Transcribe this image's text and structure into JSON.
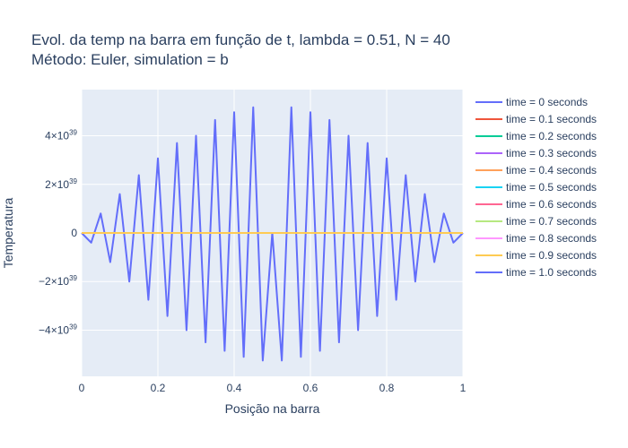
{
  "chart_data": {
    "type": "line",
    "title_lines": [
      "Evol. da temp na barra em função de t, lambda = 0.51, N = 40",
      "Método: Euler, simulation = b"
    ],
    "xlabel": "Posição na barra",
    "ylabel": "Temperatura",
    "xlim": [
      0,
      1
    ],
    "ylim": [
      -5.9e+39,
      5.9e+39
    ],
    "x_ticks": [
      {
        "value": 0,
        "label": "0"
      },
      {
        "value": 0.2,
        "label": "0.2"
      },
      {
        "value": 0.4,
        "label": "0.4"
      },
      {
        "value": 0.6,
        "label": "0.6"
      },
      {
        "value": 0.8,
        "label": "0.8"
      },
      {
        "value": 1,
        "label": "1"
      }
    ],
    "y_ticks": [
      {
        "value": -4e+39,
        "mant": "−4×10",
        "exp": "39"
      },
      {
        "value": -2e+39,
        "mant": "−2×10",
        "exp": "39"
      },
      {
        "value": 0,
        "mant": "0",
        "exp": ""
      },
      {
        "value": 2e+39,
        "mant": "2×10",
        "exp": "39"
      },
      {
        "value": 4e+39,
        "mant": "4×10",
        "exp": "39"
      }
    ],
    "grid": true,
    "legend_position": "right",
    "series": [
      {
        "name": "time = 0 seconds",
        "color": "#636efa",
        "kind": "flat"
      },
      {
        "name": "time = 0.1 seconds",
        "color": "#ef553b",
        "kind": "flat"
      },
      {
        "name": "time = 0.2 seconds",
        "color": "#00cc96",
        "kind": "flat"
      },
      {
        "name": "time = 0.3 seconds",
        "color": "#ab63fa",
        "kind": "flat"
      },
      {
        "name": "time = 0.4 seconds",
        "color": "#ffa15a",
        "kind": "flat"
      },
      {
        "name": "time = 0.5 seconds",
        "color": "#19d3f3",
        "kind": "flat"
      },
      {
        "name": "time = 0.6 seconds",
        "color": "#ff6692",
        "kind": "flat"
      },
      {
        "name": "time = 0.7 seconds",
        "color": "#b6e880",
        "kind": "flat"
      },
      {
        "name": "time = 0.8 seconds",
        "color": "#ff97ff",
        "kind": "flat"
      },
      {
        "name": "time = 0.9 seconds",
        "color": "#fecb52",
        "kind": "flat"
      },
      {
        "name": "time = 1.0 seconds",
        "color": "#636efa",
        "kind": "data",
        "x": [
          0,
          0.025,
          0.05,
          0.075,
          0.1,
          0.125,
          0.15,
          0.175,
          0.2,
          0.225,
          0.25,
          0.275,
          0.3,
          0.325,
          0.35,
          0.375,
          0.4,
          0.425,
          0.45,
          0.475,
          0.5,
          0.525,
          0.55,
          0.575,
          0.6,
          0.625,
          0.65,
          0.675,
          0.7,
          0.725,
          0.75,
          0.775,
          0.8,
          0.825,
          0.85,
          0.875,
          0.9,
          0.925,
          0.95,
          0.975,
          1
        ],
        "y": [
          0,
          -4e+38,
          8e+38,
          -1.2e+39,
          1.6e+39,
          -2e+39,
          2.38e+39,
          -2.75e+39,
          3.07e+39,
          -3.42e+39,
          3.7e+39,
          -4e+39,
          4e+39,
          -4.5e+39,
          4.65e+39,
          -4.85e+39,
          4.97e+39,
          -5.1e+39,
          5.17e+39,
          -5.25e+39,
          0,
          -5.25e+39,
          5.17e+39,
          -5.1e+39,
          4.97e+39,
          -4.85e+39,
          4.65e+39,
          -4.5e+39,
          4e+39,
          -4e+39,
          3.7e+39,
          -3.42e+39,
          3.07e+39,
          -2.75e+39,
          2.38e+39,
          -2e+39,
          1.6e+39,
          -1.2e+39,
          8e+38,
          -4e+38,
          0
        ]
      }
    ]
  }
}
